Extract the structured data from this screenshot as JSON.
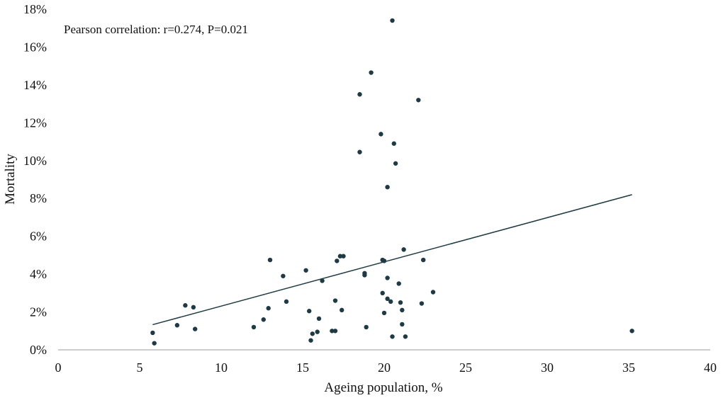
{
  "chart_data": {
    "type": "scatter",
    "title": "",
    "xlabel": "Ageing population, %",
    "ylabel": "Mortality",
    "xlim": [
      0,
      40
    ],
    "ylim": [
      0,
      18
    ],
    "x_ticks": [
      0,
      5,
      10,
      15,
      20,
      25,
      30,
      35,
      40
    ],
    "y_ticks": [
      0,
      2,
      4,
      6,
      8,
      10,
      12,
      14,
      16,
      18
    ],
    "x_tick_labels": [
      "0",
      "5",
      "10",
      "15",
      "20",
      "25",
      "30",
      "35",
      "40"
    ],
    "y_tick_labels": [
      "0%",
      "2%",
      "4%",
      "6%",
      "8%",
      "10%",
      "12%",
      "14%",
      "16%",
      "18%"
    ],
    "grid": false,
    "annotation": "Pearson correlation: r=0.274, P=0.021",
    "point_color": "#1e3a44",
    "trendline": {
      "x": [
        5.8,
        35.2
      ],
      "y": [
        1.33,
        8.2
      ]
    },
    "points": [
      {
        "x": 5.8,
        "y": 0.9
      },
      {
        "x": 5.9,
        "y": 0.35
      },
      {
        "x": 7.3,
        "y": 1.3
      },
      {
        "x": 7.8,
        "y": 2.35
      },
      {
        "x": 8.3,
        "y": 2.25
      },
      {
        "x": 8.4,
        "y": 1.1
      },
      {
        "x": 12.0,
        "y": 1.2
      },
      {
        "x": 12.6,
        "y": 1.6
      },
      {
        "x": 12.9,
        "y": 2.2
      },
      {
        "x": 13.0,
        "y": 4.75
      },
      {
        "x": 13.8,
        "y": 3.9
      },
      {
        "x": 14.0,
        "y": 2.55
      },
      {
        "x": 15.2,
        "y": 4.2
      },
      {
        "x": 15.4,
        "y": 2.05
      },
      {
        "x": 15.5,
        "y": 0.5
      },
      {
        "x": 15.6,
        "y": 0.85
      },
      {
        "x": 15.9,
        "y": 0.95
      },
      {
        "x": 16.0,
        "y": 1.65
      },
      {
        "x": 16.2,
        "y": 3.65
      },
      {
        "x": 16.8,
        "y": 1.0
      },
      {
        "x": 17.0,
        "y": 1.0
      },
      {
        "x": 17.0,
        "y": 2.6
      },
      {
        "x": 17.1,
        "y": 4.7
      },
      {
        "x": 17.3,
        "y": 4.95
      },
      {
        "x": 17.5,
        "y": 4.95
      },
      {
        "x": 17.4,
        "y": 2.1
      },
      {
        "x": 18.5,
        "y": 13.5
      },
      {
        "x": 18.5,
        "y": 10.45
      },
      {
        "x": 18.8,
        "y": 4.05
      },
      {
        "x": 18.8,
        "y": 3.95
      },
      {
        "x": 18.9,
        "y": 1.2
      },
      {
        "x": 19.2,
        "y": 14.65
      },
      {
        "x": 19.8,
        "y": 11.4
      },
      {
        "x": 19.9,
        "y": 4.75
      },
      {
        "x": 20.0,
        "y": 4.7
      },
      {
        "x": 19.9,
        "y": 3.0
      },
      {
        "x": 20.0,
        "y": 1.95
      },
      {
        "x": 20.2,
        "y": 8.6
      },
      {
        "x": 20.2,
        "y": 3.8
      },
      {
        "x": 20.2,
        "y": 2.7
      },
      {
        "x": 20.4,
        "y": 2.55
      },
      {
        "x": 20.5,
        "y": 0.7
      },
      {
        "x": 20.5,
        "y": 17.4
      },
      {
        "x": 20.6,
        "y": 10.9
      },
      {
        "x": 20.7,
        "y": 9.85
      },
      {
        "x": 20.9,
        "y": 3.5
      },
      {
        "x": 21.0,
        "y": 2.5
      },
      {
        "x": 21.1,
        "y": 2.1
      },
      {
        "x": 21.1,
        "y": 1.35
      },
      {
        "x": 21.2,
        "y": 5.3
      },
      {
        "x": 21.3,
        "y": 0.7
      },
      {
        "x": 22.1,
        "y": 13.2
      },
      {
        "x": 22.3,
        "y": 2.45
      },
      {
        "x": 22.4,
        "y": 4.75
      },
      {
        "x": 23.0,
        "y": 3.05
      },
      {
        "x": 35.2,
        "y": 1.0
      }
    ]
  }
}
